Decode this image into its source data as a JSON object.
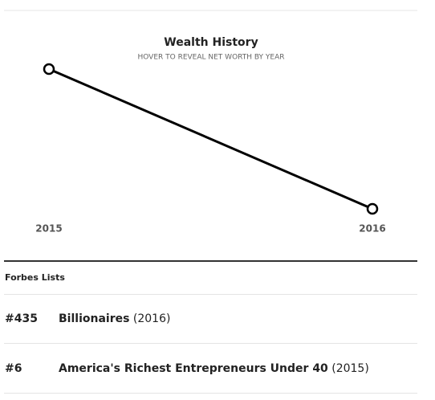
{
  "chart_data": {
    "type": "line",
    "title": "Wealth History",
    "subtitle": "HOVER TO REVEAL NET WORTH BY YEAR",
    "categories": [
      "2015",
      "2016"
    ],
    "values": [
      0.9,
      0.1
    ],
    "color": "#000000",
    "ylim": [
      0,
      1
    ]
  },
  "forbes_lists": {
    "title": "Forbes Lists",
    "rows": [
      {
        "rank": "#435",
        "list": "Billionaires",
        "year": "(2016)"
      },
      {
        "rank": "#6",
        "list": "America's Richest Entrepreneurs Under 40",
        "year": "(2015)"
      }
    ]
  }
}
